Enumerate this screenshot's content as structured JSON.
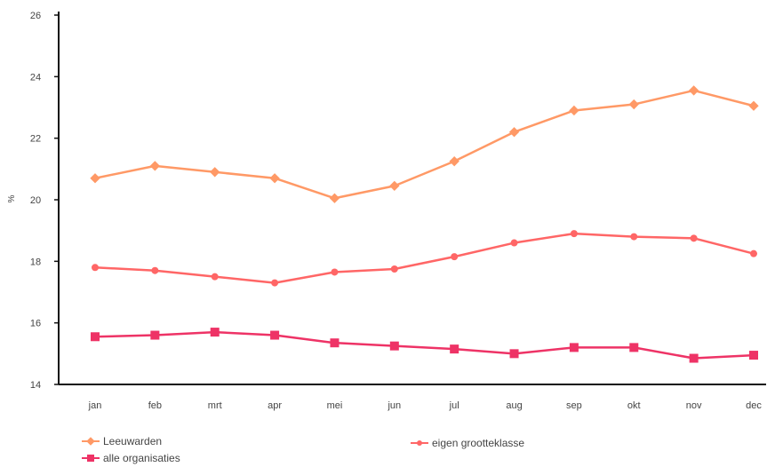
{
  "chart_data": {
    "type": "line",
    "title": "",
    "xlabel": "",
    "ylabel": "%",
    "ylim": [
      14,
      26
    ],
    "yticks": [
      "14",
      "16",
      "18",
      "20",
      "22",
      "24",
      "26"
    ],
    "categories": [
      "jan",
      "feb",
      "mrt",
      "apr",
      "mei",
      "jun",
      "jul",
      "aug",
      "sep",
      "okt",
      "nov",
      "dec"
    ],
    "series": [
      {
        "name": "Leeuwarden",
        "color": "#ff9966",
        "marker": "diamond",
        "values": [
          20.7,
          21.1,
          20.9,
          20.7,
          20.05,
          20.45,
          21.25,
          22.2,
          22.9,
          23.1,
          23.55,
          23.05
        ]
      },
      {
        "name": "eigen grootteklasse",
        "color": "#ff6666",
        "marker": "circle",
        "values": [
          17.8,
          17.7,
          17.5,
          17.3,
          17.65,
          17.75,
          18.15,
          18.6,
          18.9,
          18.8,
          18.75,
          18.25
        ]
      },
      {
        "name": "alle organisaties",
        "color": "#ee3366",
        "marker": "square",
        "values": [
          15.55,
          15.6,
          15.7,
          15.6,
          15.35,
          15.25,
          15.15,
          15.0,
          15.2,
          15.2,
          14.85,
          14.95
        ]
      }
    ],
    "grid": false,
    "legend_position": "bottom"
  }
}
